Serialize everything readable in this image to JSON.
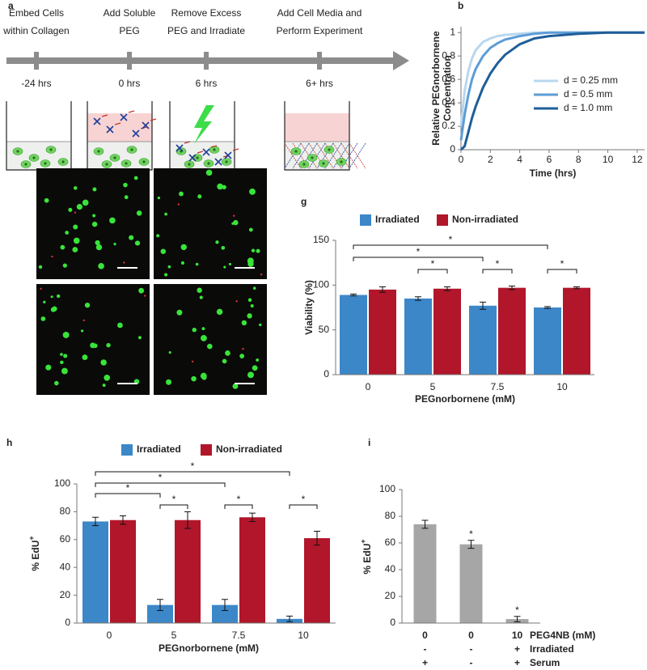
{
  "panel_a": {
    "label": "a",
    "steps": [
      {
        "title": [
          "Embed Cells",
          "within Collagen"
        ],
        "time": "-24 hrs"
      },
      {
        "title": [
          "Add Soluble",
          "PEG"
        ],
        "time": "0 hrs"
      },
      {
        "title": [
          "Remove Excess",
          "PEG and Irradiate"
        ],
        "time": "6 hrs"
      },
      {
        "title": [
          "Add Cell Media and",
          "Perform Experiment"
        ],
        "time": "6+ hrs"
      }
    ]
  },
  "chart_data": [
    {
      "type": "line",
      "panel": "b",
      "x": [
        0,
        0.25,
        0.5,
        0.75,
        1,
        1.5,
        2,
        2.5,
        3,
        4,
        5,
        6,
        8,
        10,
        12.5
      ],
      "series": [
        {
          "name": "d = 0.25 mm",
          "color": "#b9d7ee",
          "values": [
            0.2,
            0.5,
            0.67,
            0.78,
            0.85,
            0.92,
            0.95,
            0.97,
            0.98,
            0.99,
            1,
            1,
            1,
            1,
            1
          ]
        },
        {
          "name": "d = 0.5 mm",
          "color": "#5c9dd6",
          "values": [
            0.08,
            0.3,
            0.47,
            0.6,
            0.69,
            0.8,
            0.87,
            0.91,
            0.94,
            0.97,
            0.99,
            1,
            1,
            1,
            1
          ]
        },
        {
          "name": "d = 1.0 mm",
          "color": "#1f5e98",
          "values": [
            0,
            0.03,
            0.15,
            0.27,
            0.37,
            0.53,
            0.65,
            0.74,
            0.81,
            0.9,
            0.95,
            0.97,
            0.99,
            1,
            1
          ]
        }
      ],
      "xlim": [
        0,
        12.5
      ],
      "ylim": [
        0,
        1.05
      ],
      "xticks": [
        0,
        2,
        4,
        6,
        8,
        10,
        12
      ],
      "yticks": [
        0,
        0.2,
        0.4,
        0.6,
        0.8,
        1
      ],
      "x_label": "Time (hrs)",
      "y_label": [
        "Relative PEGnorbornene",
        "Concentration"
      ],
      "legend": "right"
    },
    {
      "type": "bar",
      "panel": "g",
      "categories": [
        "0",
        "5",
        "7.5",
        "10"
      ],
      "series": [
        {
          "name": "Irradiated",
          "color": "#3c87c8",
          "values": [
            89,
            85,
            77,
            75
          ],
          "errors": [
            1,
            2,
            4,
            1
          ]
        },
        {
          "name": "Non-irradiated",
          "color": "#b1162a",
          "values": [
            95,
            96,
            97,
            97
          ],
          "errors": [
            3,
            2,
            2,
            1
          ]
        }
      ],
      "ylim": [
        0,
        150
      ],
      "yticks": [
        0,
        50,
        100,
        150
      ],
      "x_label": "PEGnorbornene (mM)",
      "y_label": "Viability (%)",
      "legend": "top",
      "comparisons": [
        {
          "a": [
            0,
            0
          ],
          "b": [
            3,
            0
          ],
          "label": "*"
        },
        {
          "a": [
            0,
            0
          ],
          "b": [
            2,
            0
          ],
          "label": "*"
        },
        {
          "a": [
            1,
            0
          ],
          "b": [
            1,
            1
          ],
          "label": "*"
        },
        {
          "a": [
            2,
            0
          ],
          "b": [
            2,
            1
          ],
          "label": "*"
        },
        {
          "a": [
            3,
            0
          ],
          "b": [
            3,
            1
          ],
          "label": "*"
        }
      ]
    },
    {
      "type": "bar",
      "panel": "h",
      "categories": [
        "0",
        "5",
        "7.5",
        "10"
      ],
      "series": [
        {
          "name": "Irradiated",
          "color": "#3c87c8",
          "values": [
            73,
            13,
            13,
            3
          ],
          "errors": [
            3,
            4,
            4,
            2
          ]
        },
        {
          "name": "Non-irradiated",
          "color": "#b1162a",
          "values": [
            74,
            74,
            76,
            61
          ],
          "errors": [
            3,
            6,
            3,
            5
          ]
        }
      ],
      "ylim": [
        0,
        100
      ],
      "yticks": [
        0,
        20,
        40,
        60,
        80,
        100
      ],
      "x_label": "PEGnorbornene (mM)",
      "y_label": "% EdU",
      "y_label_sup": "+",
      "legend": "top",
      "comparisons": [
        {
          "a": [
            0,
            0
          ],
          "b": [
            3,
            0
          ],
          "label": "*"
        },
        {
          "a": [
            0,
            0
          ],
          "b": [
            2,
            0
          ],
          "label": "*"
        },
        {
          "a": [
            0,
            0
          ],
          "b": [
            1,
            0
          ],
          "label": "*"
        },
        {
          "a": [
            1,
            0
          ],
          "b": [
            1,
            1
          ],
          "label": "*"
        },
        {
          "a": [
            2,
            0
          ],
          "b": [
            2,
            1
          ],
          "label": "*"
        },
        {
          "a": [
            3,
            0
          ],
          "b": [
            3,
            1
          ],
          "label": "*"
        }
      ]
    },
    {
      "type": "bar",
      "panel": "i",
      "categories": [
        "0",
        "0",
        "10"
      ],
      "values": [
        74,
        59,
        3
      ],
      "errors": [
        3,
        3,
        2
      ],
      "color": "#a6a6a6",
      "ylim": [
        0,
        100
      ],
      "yticks": [
        0,
        20,
        40,
        60,
        80,
        100
      ],
      "y_label": "% EdU",
      "y_label_sup": "+",
      "x_label": "PEG4NB (mM)",
      "rows": [
        {
          "label": "Irradiated",
          "cells": [
            "-",
            "-",
            "+"
          ]
        },
        {
          "label": "Serum",
          "cells": [
            "+",
            "-",
            "+"
          ]
        }
      ],
      "annotations": [
        {
          "category": 1,
          "label": "*"
        },
        {
          "category": 2,
          "label": "*"
        }
      ]
    }
  ]
}
